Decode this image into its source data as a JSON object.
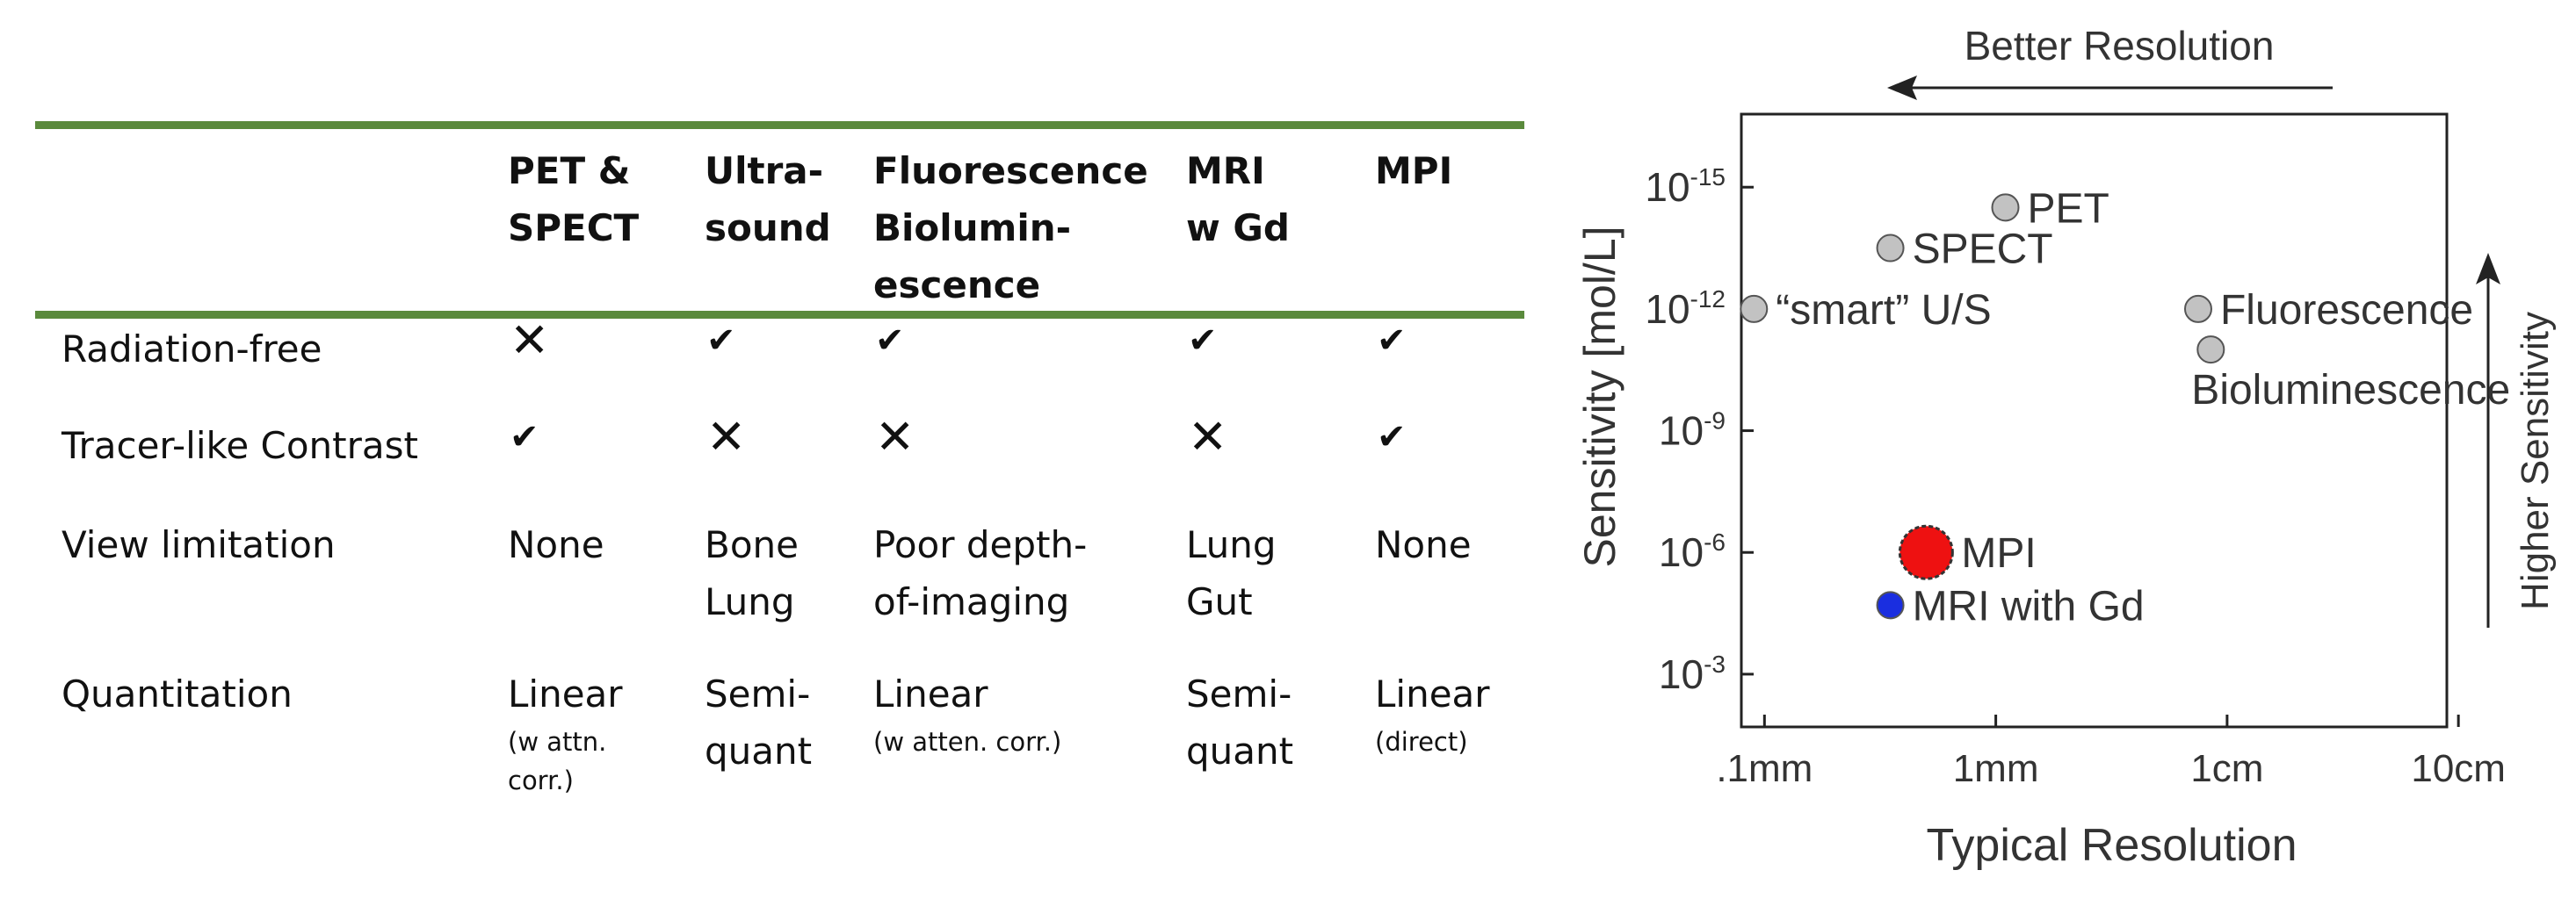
{
  "table": {
    "headers": [
      {
        "lines": [
          "PET &",
          "SPECT"
        ]
      },
      {
        "lines": [
          "Ultra-",
          "sound"
        ]
      },
      {
        "lines": [
          "Fluorescence",
          "Biolumin-",
          "escence"
        ]
      },
      {
        "lines": [
          "MRI",
          "w Gd"
        ]
      },
      {
        "lines": [
          "MPI"
        ]
      }
    ],
    "rows": [
      {
        "label": "Radiation-free",
        "cells": [
          {
            "mark": "cross",
            "symbol": "✕"
          },
          {
            "mark": "check",
            "symbol": "✔"
          },
          {
            "mark": "check",
            "symbol": "✔"
          },
          {
            "mark": "check",
            "symbol": "✔"
          },
          {
            "mark": "check",
            "symbol": "✔"
          }
        ]
      },
      {
        "label": "Tracer-like Contrast",
        "cells": [
          {
            "mark": "check",
            "symbol": "✔"
          },
          {
            "mark": "cross",
            "symbol": "✕"
          },
          {
            "mark": "cross",
            "symbol": "✕"
          },
          {
            "mark": "cross",
            "symbol": "✕"
          },
          {
            "mark": "check",
            "symbol": "✔"
          }
        ]
      },
      {
        "label": "View limitation",
        "cells": [
          {
            "lines": [
              "None"
            ]
          },
          {
            "lines": [
              "Bone",
              "Lung"
            ]
          },
          {
            "lines": [
              "Poor depth-",
              "of-imaging"
            ]
          },
          {
            "lines": [
              "Lung",
              "Gut"
            ]
          },
          {
            "lines": [
              "None"
            ]
          }
        ]
      },
      {
        "label": "Quantitation",
        "cells": [
          {
            "lines": [
              "Linear"
            ],
            "note": [
              "(w attn.",
              "corr.)"
            ]
          },
          {
            "lines": [
              "Semi-",
              "quant"
            ]
          },
          {
            "lines": [
              "Linear"
            ],
            "note": [
              "(w atten. corr.)"
            ]
          },
          {
            "lines": [
              "Semi-",
              "quant"
            ]
          },
          {
            "lines": [
              "Linear"
            ],
            "note": [
              "(direct)"
            ]
          }
        ]
      }
    ],
    "colors": {
      "rule": "#5a8a3c"
    }
  },
  "chart_data": {
    "type": "scatter",
    "xlabel": "Typical Resolution",
    "ylabel": "Sensitivity [mol/L]",
    "x_scale": "log",
    "x_unit": "mm",
    "x_ticks": [
      {
        "value": 0.1,
        "label": ".1mm"
      },
      {
        "value": 1,
        "label": "1mm"
      },
      {
        "value": 10,
        "label": "1cm"
      },
      {
        "value": 100,
        "label": "10cm"
      }
    ],
    "y_scale": "log",
    "y_unit": "mol/L",
    "y_ticks": [
      {
        "exp": -15,
        "base": "10",
        "sup": "-15"
      },
      {
        "exp": -12,
        "base": "10",
        "sup": "-12"
      },
      {
        "exp": -9,
        "base": "10",
        "sup": "-9"
      },
      {
        "exp": -6,
        "base": "10",
        "sup": "-6"
      },
      {
        "exp": -3,
        "base": "10",
        "sup": "-3"
      }
    ],
    "xlim_log10": [
      -1.1,
      1.95
    ],
    "ylim_exp": [
      -16.8,
      -1.7
    ],
    "annotations": [
      {
        "text": "Better Resolution",
        "arrow": "left"
      },
      {
        "text": "Higher Sensitivity",
        "arrow": "up"
      }
    ],
    "points": [
      {
        "label": "PET",
        "x": 1.1,
        "y_exp": -14.5,
        "color": "#c2c2c2",
        "label_side": "right"
      },
      {
        "label": "SPECT",
        "x": 0.35,
        "y_exp": -13.5,
        "color": "#c2c2c2",
        "label_side": "right"
      },
      {
        "label": "“smart” U/S",
        "x": 0.09,
        "y_exp": -12.0,
        "color": "#c2c2c2",
        "label_side": "right"
      },
      {
        "label": "Fluorescence",
        "x": 7.5,
        "y_exp": -12.0,
        "color": "#c2c2c2",
        "label_side": "right"
      },
      {
        "label": "Bioluminescence",
        "x": 8.5,
        "y_exp": -11.0,
        "color": "#c2c2c2",
        "label_side": "below"
      },
      {
        "label": "MPI",
        "x": 0.5,
        "y_exp": -6.0,
        "color": "#ee1111",
        "size": "large",
        "label_side": "right"
      },
      {
        "label": "MRI with Gd",
        "x": 0.35,
        "y_exp": -4.7,
        "color": "#1a2ee0",
        "label_side": "right"
      }
    ]
  }
}
